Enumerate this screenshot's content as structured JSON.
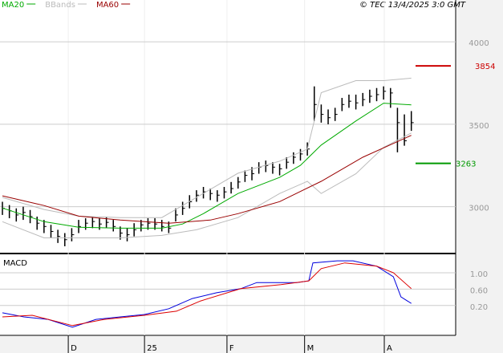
{
  "chart_data": [
    {
      "type": "ohlc",
      "source": "© TEC 13/4/2025 3:0 GMT",
      "xlim": [
        -0.35,
        65.4
      ],
      "xticks": [
        {
          "value": 9.5,
          "label": "D"
        },
        {
          "value": 20.5,
          "label": "25"
        },
        {
          "value": 32.4,
          "label": "F"
        },
        {
          "value": 43.6,
          "label": "M"
        },
        {
          "value": 55.1,
          "label": "A"
        }
      ],
      "ylim": [
        2716,
        4254
      ],
      "yticks": [
        3000,
        3500,
        4000
      ],
      "grid": true,
      "bars": {
        "color": "#000000",
        "close": [
          2990,
          2975,
          2950,
          2965,
          2940,
          2900,
          2880,
          2850,
          2820,
          2800,
          2830,
          2880,
          2900,
          2910,
          2895,
          2905,
          2880,
          2840,
          2830,
          2860,
          2890,
          2900,
          2895,
          2880,
          2870,
          2950,
          2990,
          3030,
          3070,
          3090,
          3080,
          3070,
          3090,
          3110,
          3150,
          3190,
          3200,
          3240,
          3250,
          3240,
          3230,
          3270,
          3300,
          3320,
          3350,
          3620,
          3560,
          3540,
          3560,
          3620,
          3640,
          3630,
          3650,
          3670,
          3680,
          3700,
          3690,
          3510,
          3400,
          3510
        ],
        "high": [
          3030,
          3010,
          2990,
          3000,
          2980,
          2940,
          2920,
          2890,
          2860,
          2840,
          2870,
          2920,
          2930,
          2940,
          2930,
          2940,
          2920,
          2880,
          2870,
          2900,
          2920,
          2930,
          2930,
          2920,
          2910,
          2990,
          3030,
          3070,
          3100,
          3120,
          3110,
          3100,
          3120,
          3150,
          3180,
          3220,
          3240,
          3270,
          3280,
          3270,
          3260,
          3300,
          3330,
          3350,
          3390,
          3730,
          3620,
          3590,
          3600,
          3660,
          3680,
          3680,
          3690,
          3710,
          3720,
          3730,
          3720,
          3600,
          3560,
          3580
        ],
        "low": [
          2950,
          2930,
          2910,
          2920,
          2900,
          2860,
          2840,
          2810,
          2780,
          2760,
          2790,
          2840,
          2860,
          2870,
          2860,
          2870,
          2850,
          2800,
          2790,
          2820,
          2850,
          2860,
          2860,
          2850,
          2840,
          2910,
          2950,
          2990,
          3030,
          3050,
          3040,
          3030,
          3050,
          3080,
          3110,
          3150,
          3160,
          3200,
          3210,
          3200,
          3190,
          3230,
          3260,
          3280,
          3310,
          3520,
          3510,
          3500,
          3520,
          3580,
          3600,
          3590,
          3610,
          3630,
          3640,
          3650,
          3600,
          3330,
          3370,
          3460
        ]
      },
      "series": [
        {
          "name": "MA20",
          "color": "#00aa00",
          "x": [
            0,
            6,
            11,
            17,
            23,
            26,
            29,
            34,
            40,
            43,
            46,
            51,
            55,
            59
          ],
          "values": [
            2992,
            2909,
            2875,
            2870,
            2870,
            2895,
            2958,
            3080,
            3178,
            3251,
            3374,
            3520,
            3628,
            3618
          ]
        },
        {
          "name": "BBands",
          "color": "#bbbbbb",
          "x": [
            0,
            6,
            11,
            17,
            23,
            28,
            34,
            40,
            44,
            46,
            51,
            55,
            59
          ],
          "upper": [
            3056,
            2983,
            2943,
            2934,
            2934,
            3056,
            3203,
            3276,
            3349,
            3692,
            3765,
            3765,
            3780
          ],
          "lower": [
            2909,
            2811,
            2811,
            2811,
            2826,
            2860,
            2934,
            3080,
            3154,
            3080,
            3200,
            3360,
            3447
          ]
        },
        {
          "name": "MA60",
          "color": "#990000",
          "x": [
            0,
            6,
            11,
            17,
            24,
            30,
            34,
            40,
            46,
            52,
            59
          ],
          "values": [
            3066,
            3007,
            2943,
            2919,
            2900,
            2919,
            2958,
            3031,
            3154,
            3300,
            3433
          ]
        }
      ],
      "annotations": [
        {
          "value": 3854,
          "color": "#cc0000"
        },
        {
          "value": 3263,
          "color": "#009900"
        }
      ]
    },
    {
      "type": "line",
      "title": "MACD",
      "ylim": [
        -0.53,
        1.43
      ],
      "yticks": [
        {
          "value": 0.2,
          "label": "0.20"
        },
        {
          "value": 0.6,
          "label": "0.60"
        },
        {
          "value": 1,
          "label": "1.00"
        }
      ],
      "grid": true,
      "series": [
        {
          "color": "#0000dd",
          "x": [
            0,
            3.1,
            6.6,
            10.1,
            13.5,
            17,
            20.5,
            24,
            27.4,
            30.9,
            34.4,
            36.7,
            40.2,
            42.5,
            44.2,
            44.8,
            48.3,
            50.6,
            54,
            56.4,
            57.5,
            59
          ],
          "values": [
            0.02,
            -0.08,
            -0.14,
            -0.33,
            -0.14,
            -0.08,
            -0.02,
            0.12,
            0.37,
            0.51,
            0.61,
            0.76,
            0.76,
            0.76,
            0.8,
            1.24,
            1.29,
            1.29,
            1.16,
            0.9,
            0.41,
            0.25
          ]
        },
        {
          "color": "#dd0000",
          "x": [
            0,
            4.3,
            10.1,
            14.7,
            20.5,
            25.1,
            28.6,
            34.4,
            40.2,
            44.2,
            46,
            49.4,
            54,
            56.4,
            59
          ],
          "values": [
            -0.08,
            -0.04,
            -0.29,
            -0.14,
            -0.04,
            0.06,
            0.31,
            0.61,
            0.71,
            0.8,
            1.1,
            1.24,
            1.16,
            1.0,
            0.61
          ]
        }
      ]
    }
  ]
}
